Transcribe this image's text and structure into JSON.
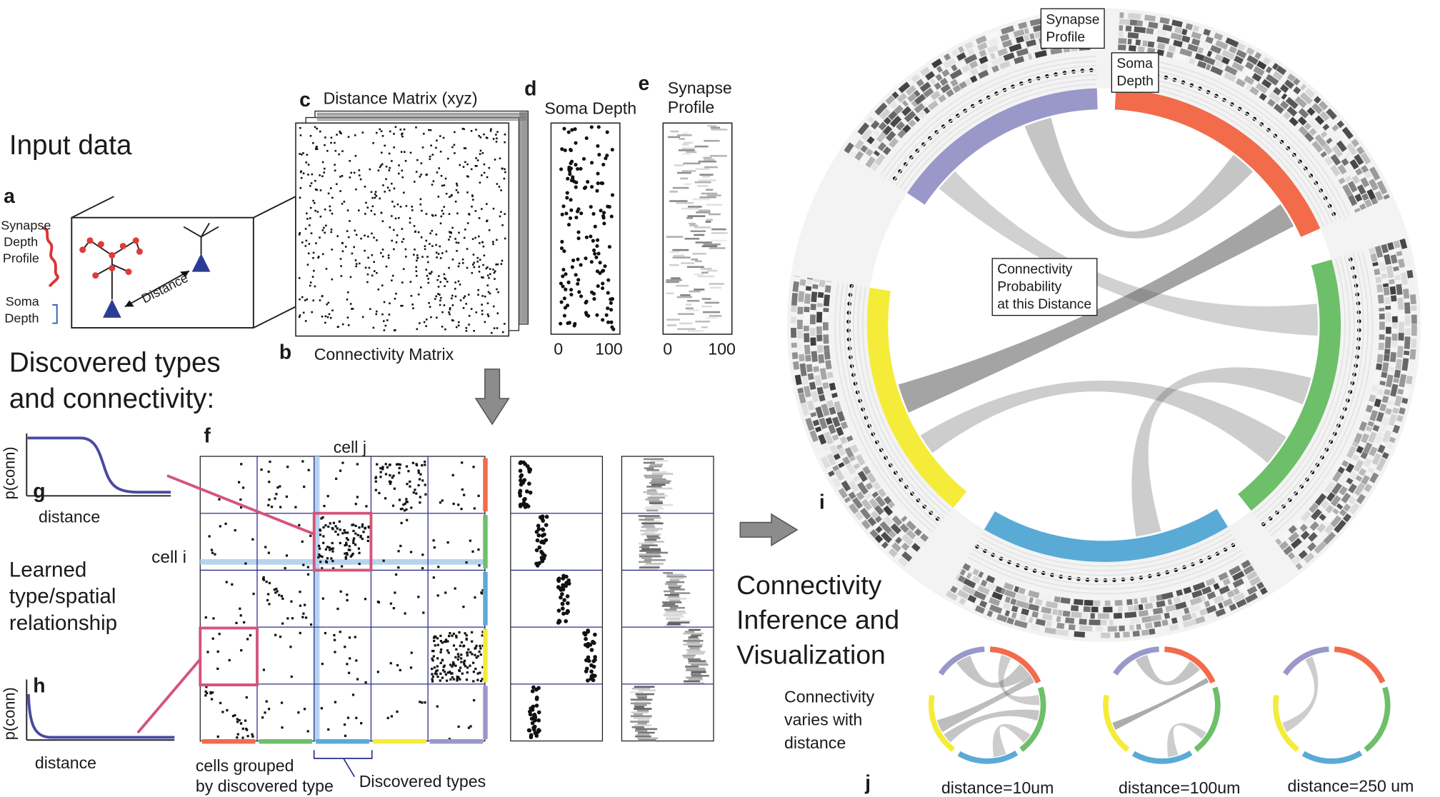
{
  "labels": {
    "input_data": "Input data",
    "discovered_types": "Discovered types",
    "and_connectivity": "and connectivity:",
    "learned1": "Learned",
    "learned2": "type/spatial",
    "learned3": "relationship",
    "ci1": "Connectivity",
    "ci2": "Inference and",
    "ci3": "Visualization",
    "distance_matrix": "Distance Matrix (xyz)",
    "connectivity_matrix": "Connectivity Matrix",
    "soma_depth": "Soma Depth",
    "synapse_profile_1": "Synapse",
    "synapse_profile_2": "Profile",
    "synapse_depth_1": "Synapse",
    "synapse_depth_2": "Depth",
    "synapse_depth_3": "Profile",
    "soma_1": "Soma",
    "soma_2": "Depth",
    "distance_arrow": "Distance",
    "tick_0": "0",
    "tick_100": "100",
    "pconn": "p(conn)",
    "distance": "distance",
    "cell_j": "cell j",
    "cell_i": "cell i",
    "cells_grouped_1": "cells grouped",
    "cells_grouped_2": "by discovered type",
    "discovered_types_brace": "Discovered types",
    "varies1": "Connectivity",
    "varies2": "varies with",
    "varies3": "distance",
    "dist10": "distance=10um",
    "dist100": "distance=100um",
    "dist250": "distance=250 um",
    "box_synapse_1": "Synapse",
    "box_synapse_2": "Profile",
    "box_soma_1": "Soma",
    "box_soma_2": "Depth",
    "box_conn_1": "Connectivity",
    "box_conn_2": "Probability",
    "box_conn_3": "at this Distance"
  },
  "panels": {
    "a": "a",
    "b": "b",
    "c": "c",
    "d": "d",
    "e": "e",
    "f": "f",
    "g": "g",
    "h": "h",
    "i": "i",
    "j": "j"
  },
  "colors": {
    "purple": "#9a97c9",
    "red": "#f26b4b",
    "green": "#6dbf6a",
    "blue": "#5aaad6",
    "yellow": "#f5ec3a",
    "navy": "#2b2f8f",
    "pink": "#d4547a",
    "curve": "#4a4aa0"
  }
}
